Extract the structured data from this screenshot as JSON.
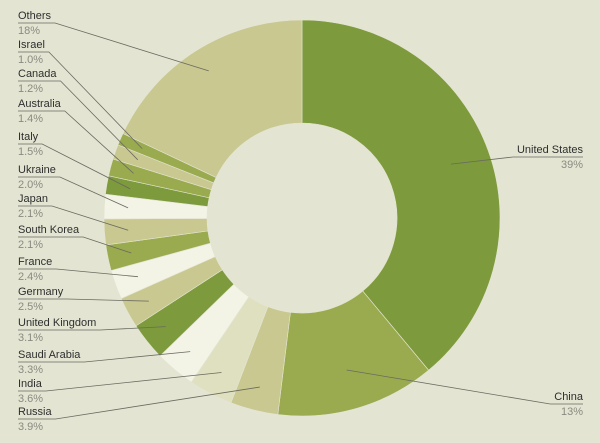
{
  "chart_data": {
    "type": "donut",
    "categories": [
      "United States",
      "China",
      "Russia",
      "India",
      "Saudi Arabia",
      "United Kingdom",
      "Germany",
      "France",
      "South Korea",
      "Japan",
      "Ukraine",
      "Italy",
      "Australia",
      "Canada",
      "Israel",
      "Others"
    ],
    "values": [
      39,
      13,
      3.9,
      3.6,
      3.3,
      3.1,
      2.5,
      2.4,
      2.1,
      2.1,
      2.0,
      1.5,
      1.4,
      1.2,
      1.0,
      18
    ],
    "value_labels": [
      "39%",
      "13%",
      "3.9%",
      "3.6%",
      "3.3%",
      "3.1%",
      "2.5%",
      "2.4%",
      "2.1%",
      "2.1%",
      "2.0%",
      "1.5%",
      "1.4%",
      "1.2%",
      "1.0%",
      "18%"
    ],
    "colors": [
      "#7d9a3c",
      "#9aab4f",
      "#c8c890",
      "#dfe0c0",
      "#f3f3e6",
      "#7d9a3c",
      "#c8c890",
      "#f3f3e6",
      "#9aab4f",
      "#c8c890",
      "#f3f3e6",
      "#7d9a3c",
      "#9aab4f",
      "#c8c890",
      "#9aab4f",
      "#c8c890"
    ]
  }
}
